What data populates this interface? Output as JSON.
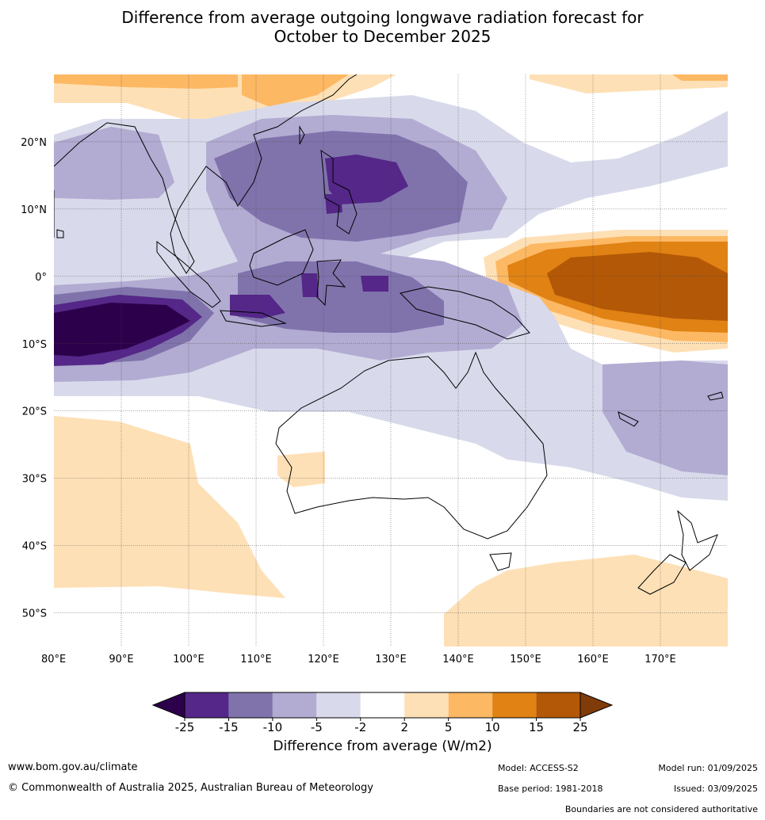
{
  "title": {
    "line1": "Difference from average outgoing longwave radiation forecast for",
    "line2": "October to December 2025"
  },
  "map": {
    "lon_range": [
      80,
      180
    ],
    "lat_range": [
      -55,
      30
    ],
    "lon_ticks": [
      "80°E",
      "90°E",
      "100°E",
      "110°E",
      "120°E",
      "130°E",
      "140°E",
      "150°E",
      "160°E",
      "170°E"
    ],
    "lat_ticks": [
      "20°N",
      "10°N",
      "0°",
      "10°S",
      "20°S",
      "30°S",
      "40°S",
      "50°S"
    ],
    "grid": true
  },
  "colorbar": {
    "label": "Difference from average (W/m2)",
    "tick_labels": [
      "-25",
      "-15",
      "-10",
      "-5",
      "-2",
      "2",
      "5",
      "10",
      "15",
      "25"
    ],
    "colors": {
      "under": "#2d004b",
      "bins": [
        "#542788",
        "#8073ac",
        "#b2abd2",
        "#d8daeb",
        "#ffffff",
        "#fee0b6",
        "#fdb863",
        "#e08214",
        "#b35806"
      ],
      "over": "#7f3b08"
    }
  },
  "footer": {
    "website": "www.bom.gov.au/climate",
    "copyright": "© Commonwealth of Australia 2025, Australian Bureau of Meteorology",
    "model": "Model: ACCESS-S2",
    "base_period": "Base period: 1981-2018",
    "model_run": "Model run: 01/09/2025",
    "issued": "Issued: 03/09/2025",
    "disclaimer": "Boundaries are not considered authoritative"
  }
}
